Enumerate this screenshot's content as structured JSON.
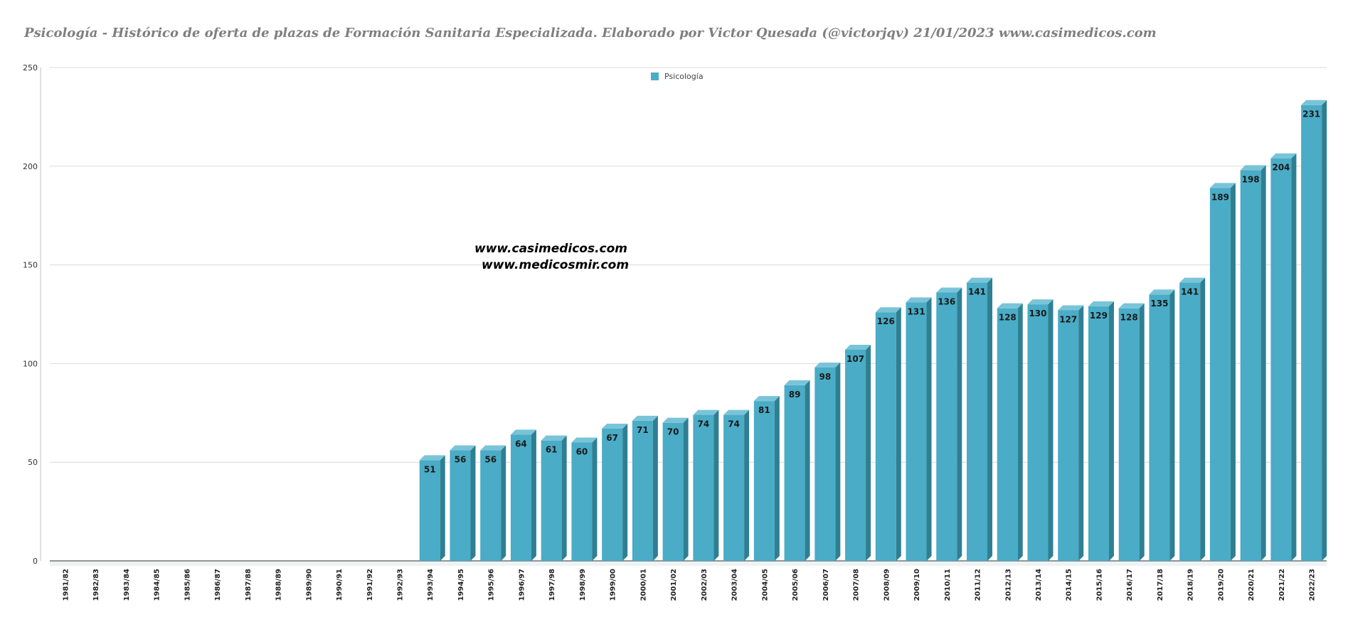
{
  "colors": {
    "bar_front": "#4aacc6",
    "bar_top": "#79c4d8",
    "bar_side": "#2f7f93",
    "title": "#7f7f7f",
    "grid": "#d9d9d9"
  },
  "watermarks": [
    "www.casimedicos.com",
    "www.medicosmir.com"
  ],
  "chart_data": {
    "type": "bar",
    "title": "Psicología - Histórico de oferta de plazas de Formación Sanitaria Especializada. Elaborado por Victor Quesada (@victorjqv)  21/01/2023 www.casimedicos.com",
    "xlabel": "",
    "ylabel": "",
    "ylim": [
      0,
      250
    ],
    "yticks": [
      0,
      50,
      100,
      150,
      200,
      250
    ],
    "grid": true,
    "legend_position": "top-center",
    "categories": [
      "1981/82",
      "1982/83",
      "1983/84",
      "1984/85",
      "1985/86",
      "1986/87",
      "1987/88",
      "1988/89",
      "1989/90",
      "1990/91",
      "1991/92",
      "1992/93",
      "1993/94",
      "1994/95",
      "1995/96",
      "1996/97",
      "1997/98",
      "1998/99",
      "1999/00",
      "2000/01",
      "2001/02",
      "2002/03",
      "2003/04",
      "2004/05",
      "2005/06",
      "2006/07",
      "2007/08",
      "2008/09",
      "2009/10",
      "2010/11",
      "2011/12",
      "2012/13",
      "2013/14",
      "2014/15",
      "2015/16",
      "2016/17",
      "2017/18",
      "2018/19",
      "2019/20",
      "2020/21",
      "2021/22",
      "2022/23"
    ],
    "series": [
      {
        "name": "Psicología",
        "values": [
          null,
          null,
          null,
          null,
          null,
          null,
          null,
          null,
          null,
          null,
          null,
          null,
          51,
          56,
          56,
          64,
          61,
          60,
          67,
          71,
          70,
          74,
          74,
          81,
          89,
          98,
          107,
          126,
          131,
          136,
          141,
          128,
          130,
          127,
          129,
          128,
          135,
          141,
          189,
          198,
          204,
          231
        ]
      }
    ]
  }
}
